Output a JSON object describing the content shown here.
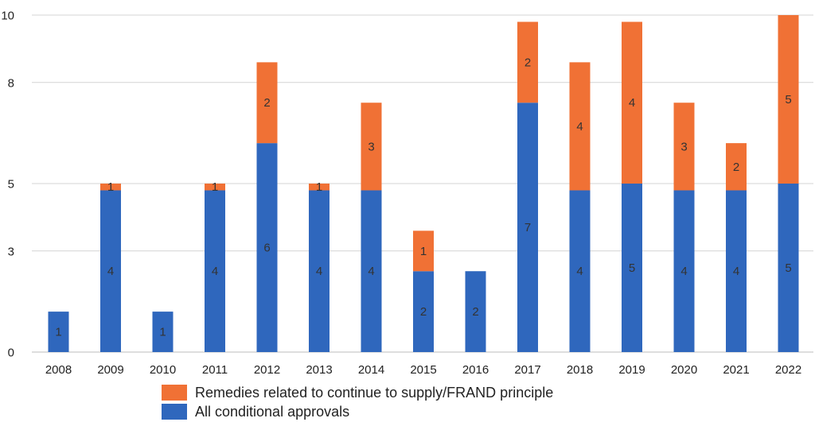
{
  "chart_data": {
    "type": "bar",
    "stacked": true,
    "title": "",
    "xlabel": "",
    "ylabel": "",
    "ylim": [
      0,
      10
    ],
    "yticks": [
      0,
      3,
      5,
      8,
      10
    ],
    "grid": true,
    "legend_position": "bottom",
    "categories": [
      "2008",
      "2009",
      "2010",
      "2011",
      "2012",
      "2013",
      "2014",
      "2015",
      "2016",
      "2017",
      "2018",
      "2019",
      "2020",
      "2021",
      "2022"
    ],
    "series": [
      {
        "name": "All conditional approvals",
        "color": "#2f67bd",
        "values": [
          1,
          4,
          1,
          4,
          6,
          4,
          4,
          2,
          2,
          7,
          4,
          5,
          4,
          4,
          5
        ],
        "heights": [
          1.2,
          4.8,
          1.2,
          4.8,
          6.2,
          4.8,
          4.8,
          2.4,
          2.4,
          7.4,
          4.8,
          5.0,
          4.8,
          4.8,
          5.0
        ],
        "labels": [
          "1",
          "4",
          "1",
          "4",
          "6",
          "4",
          "4",
          "2",
          "2",
          "7",
          "4",
          "5",
          "4",
          "4",
          "5"
        ]
      },
      {
        "name": "Remedies related to continue to supply/FRAND principle",
        "color": "#f07135",
        "values": [
          0,
          1,
          0,
          1,
          2,
          1,
          3,
          1,
          0,
          2,
          4,
          4,
          3,
          2,
          5
        ],
        "heights": [
          0,
          0.2,
          0,
          0.2,
          2.4,
          0.2,
          2.6,
          1.2,
          0,
          2.4,
          3.8,
          4.8,
          2.6,
          1.4,
          5.0
        ],
        "labels": [
          "",
          "1",
          "",
          "1",
          "2",
          "1",
          "3",
          "1",
          "",
          "2",
          "4",
          "4",
          "3",
          "2",
          "5"
        ]
      }
    ]
  },
  "legend": {
    "orange_label": "Remedies related to continue to supply/FRAND principle",
    "blue_label": "All conditional approvals"
  }
}
